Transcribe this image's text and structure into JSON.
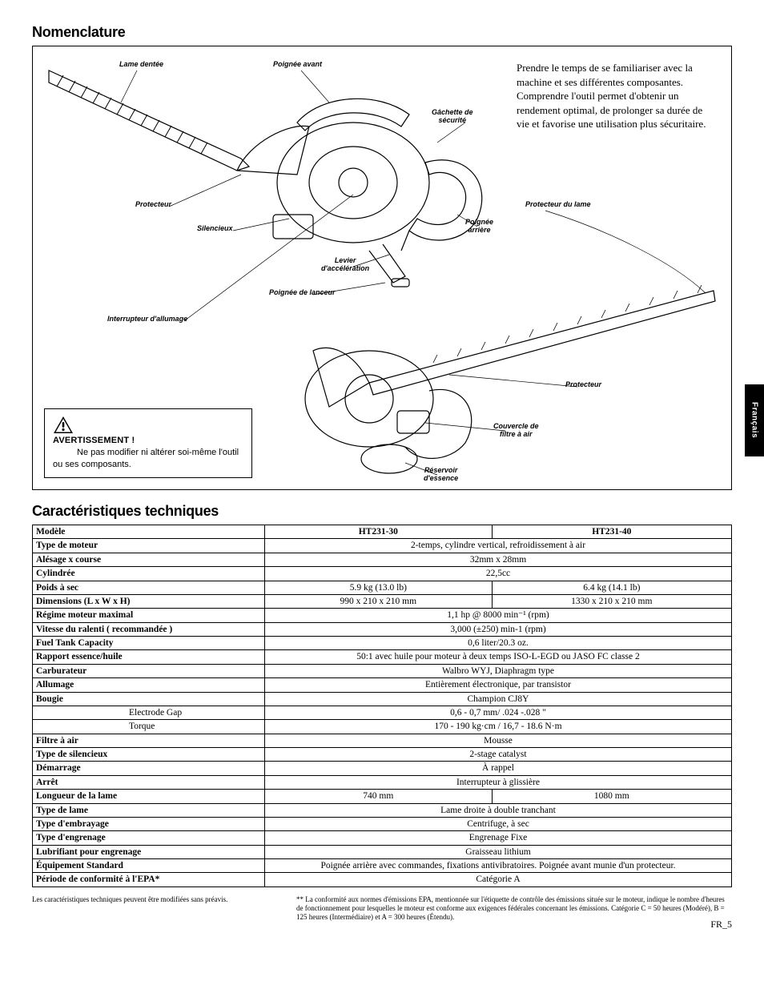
{
  "section1_title": "Nomenclature",
  "section2_title": "Caractéristiques techniques",
  "intro_text": "Prendre le temps de se familiariser avec la machine et ses différentes composantes. Comprendre l'outil permet d'obtenir un rendement optimal, de prolonger sa durée de vie et favorise une utilisation plus sécuritaire.",
  "warning": {
    "title": "AVERTISSEMENT !",
    "lead": "Ne pas modifier ni",
    "body": "altérer soi-même l'outil ou ses composants."
  },
  "side_tab": "Français",
  "callouts": {
    "lame_dentee": "Lame dentée",
    "poignee_avant": "Poignée avant",
    "gachette": "Gâchette de\nsécurité",
    "protecteur": "Protecteur",
    "silencieux": "Silencieux",
    "levier": "Levier\nd'accélération",
    "poignee_lanceur": "Poignée de lanceur",
    "interrupteur": "Interrupteur d'allumage",
    "poignee_arriere": "Poignée\narrière",
    "protecteur_lame": "Protecteur  du lame",
    "protecteur2": "Protecteur",
    "couvercle": "Couvercle de\nfiltre à air",
    "reservoir": "Réservoir\nd'essence"
  },
  "spec_table": {
    "header": {
      "label": "Modèle",
      "col1": "HT231-30",
      "col2": "HT231-40"
    },
    "rows": [
      {
        "label": "Type de moteur",
        "val": "2-temps, cylindre vertical, refroidissement à air",
        "span": 2
      },
      {
        "label": "Alésage x course",
        "val": "32mm x 28mm",
        "span": 2
      },
      {
        "label": "Cylindrée",
        "val": "22,5cc",
        "span": 2
      },
      {
        "label": "Poids à sec",
        "c1": "5.9 kg (13.0 lb)",
        "c2": "6.4 kg (14.1 lb)"
      },
      {
        "label": "Dimensions (L x W x H)",
        "c1": "990 x 210 x 210 mm",
        "c2": "1330 x 210 x 210 mm"
      },
      {
        "label": "Régime moteur maximal",
        "val": "1,1 hp @ 8000 min⁻¹ (rpm)",
        "span": 2
      },
      {
        "label": "Vitesse du ralenti ( recommandée )",
        "val": "3,000 (±250) min-1 (rpm)",
        "span": 2
      },
      {
        "label": "Fuel Tank Capacity",
        "val": "0,6 liter/20.3 oz.",
        "span": 2
      },
      {
        "label": "Rapport essence/huile",
        "val": "50:1 avec huile pour moteur à deux temps ISO-L-EGD ou JASO FC classe 2",
        "span": 2
      },
      {
        "label": "Carburateur",
        "val": "Walbro WYJ, Diaphragm type",
        "span": 2
      },
      {
        "label": "Allumage",
        "val": "Entièrement électronique, par transistor",
        "span": 2
      },
      {
        "label": "Bougie",
        "val": "Champion CJ8Y",
        "span": 2
      },
      {
        "label": "Electrode Gap",
        "indent": true,
        "val": "0,6 - 0,7 mm/ .024 -.028 \"",
        "span": 2
      },
      {
        "label": "Torque",
        "indent": true,
        "val": "170 - 190 kg·cm / 16,7 - 18.6 N·m",
        "span": 2
      },
      {
        "label": "Filtre à air",
        "val": "Mousse",
        "span": 2
      },
      {
        "label": "Type de silencieux",
        "val": "2-stage catalyst",
        "span": 2
      },
      {
        "label": "Démarrage",
        "val": "À rappel",
        "span": 2
      },
      {
        "label": "Arrêt",
        "val": "Interrupteur à glissière",
        "span": 2
      },
      {
        "label": "Longueur de la lame",
        "c1": "740 mm",
        "c2": "1080 mm"
      },
      {
        "label": "Type de lame",
        "val": "Lame droite à double tranchant",
        "span": 2
      },
      {
        "label": "Type d'embrayage",
        "val": "Centrifuge, à sec",
        "span": 2
      },
      {
        "label": "Type d'engrenage",
        "val": "Engrenage Fixe",
        "span": 2
      },
      {
        "label": "Lubrifiant pour engrenage",
        "val": "Graisseau lithium",
        "span": 2
      },
      {
        "label": "Équipement Standard",
        "val": "Poignée arrière avec commandes, fixations antivibratoires. Poignée avant munie d'un protecteur.",
        "span": 2
      },
      {
        "label": "Période de conformité à l'EPA*",
        "val": "Catégorie A",
        "span": 2
      }
    ]
  },
  "footnotes": {
    "left": "Les caractéristiques techniques peuvent être modifiées sans préavis.",
    "right": "** La conformité aux normes d'émissions EPA, mentionnée sur l'étiquette de contrôle des émissions située sur le moteur, indique le nombre d'heures de fonctionnement pour lesquelles le moteur est conforme aux exigences fédérales concernant les émissions. Catégorie C = 50 heures (Modéré), B = 125 heures (Intermédiaire) et A = 300 heures (Étendu)."
  },
  "page_number": "FR_5"
}
